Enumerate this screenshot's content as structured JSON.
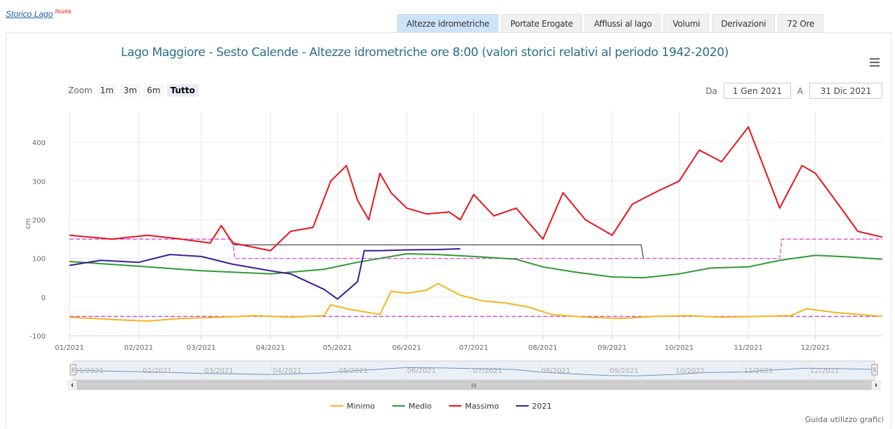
{
  "brand": {
    "label": "Storico Lago",
    "badge": "Novità"
  },
  "tabs": [
    {
      "label": "Altezze idrometriche",
      "active": true
    },
    {
      "label": "Portate Erogate",
      "active": false
    },
    {
      "label": "Afflussi al lago",
      "active": false
    },
    {
      "label": "Volumi",
      "active": false
    },
    {
      "label": "Derivazioni",
      "active": false
    },
    {
      "label": "72 Ore",
      "active": false
    }
  ],
  "zoom": {
    "label": "Zoom",
    "options": [
      {
        "label": "1m",
        "active": false
      },
      {
        "label": "3m",
        "active": false
      },
      {
        "label": "6m",
        "active": false
      },
      {
        "label": "Tutto",
        "active": true
      }
    ]
  },
  "range": {
    "from_label": "Da",
    "from_value": "1 Gen 2021",
    "to_label": "A",
    "to_value": "31 Dic 2021"
  },
  "guide_link": "Guida utilizzo grafici",
  "navigator": {
    "scroll_mark": "III"
  },
  "chart_data": {
    "type": "line",
    "title": "Lago Maggiore - Sesto Calende - Altezze idrometriche ore 8:00 (valori storici relativi al periodo 1942-2020)",
    "xlabel": "",
    "ylabel": "cm",
    "xlim": [
      "2021-01-01",
      "2021-12-31"
    ],
    "ylim": [
      -100,
      480
    ],
    "yticks": [
      -100,
      0,
      100,
      200,
      300,
      400
    ],
    "x_ticks": [
      "01/2021",
      "02/2021",
      "03/2021",
      "04/2021",
      "05/2021",
      "06/2021",
      "07/2021",
      "08/2021",
      "09/2021",
      "10/2021",
      "11/2021",
      "12/2021"
    ],
    "grid": "vertical",
    "legend_placement": "bottom-center",
    "colors": {
      "Minimo": "#f5b51c",
      "Medio": "#2f9a35",
      "Massimo": "#e8141c",
      "2021": "#3b1d96",
      "limits": "#e032d8",
      "threshold": "#222222"
    },
    "series": [
      {
        "name": "Minimo",
        "x": [
          "2021-01-01",
          "2021-01-20",
          "2021-02-05",
          "2021-02-20",
          "2021-03-10",
          "2021-03-25",
          "2021-04-10",
          "2021-04-25",
          "2021-04-28",
          "2021-05-05",
          "2021-05-15",
          "2021-05-20",
          "2021-05-25",
          "2021-06-01",
          "2021-06-10",
          "2021-06-15",
          "2021-06-25",
          "2021-07-05",
          "2021-07-15",
          "2021-07-25",
          "2021-08-05",
          "2021-08-20",
          "2021-09-05",
          "2021-09-20",
          "2021-10-05",
          "2021-10-20",
          "2021-11-05",
          "2021-11-20",
          "2021-11-27",
          "2021-12-10",
          "2021-12-31"
        ],
        "values": [
          -52,
          -58,
          -62,
          -55,
          -52,
          -48,
          -52,
          -48,
          -20,
          -30,
          -40,
          -45,
          15,
          10,
          18,
          35,
          5,
          -10,
          -15,
          -25,
          -45,
          -52,
          -55,
          -50,
          -48,
          -52,
          -50,
          -48,
          -30,
          -40,
          -50
        ]
      },
      {
        "name": "Medio",
        "x": [
          "2021-01-01",
          "2021-02-01",
          "2021-03-01",
          "2021-04-01",
          "2021-04-25",
          "2021-05-10",
          "2021-05-20",
          "2021-06-01",
          "2021-06-15",
          "2021-07-01",
          "2021-07-20",
          "2021-08-01",
          "2021-08-15",
          "2021-09-01",
          "2021-09-15",
          "2021-10-01",
          "2021-10-15",
          "2021-11-01",
          "2021-11-15",
          "2021-12-01",
          "2021-12-15",
          "2021-12-31"
        ],
        "values": [
          92,
          80,
          68,
          60,
          72,
          90,
          100,
          112,
          110,
          105,
          98,
          78,
          65,
          52,
          50,
          60,
          75,
          78,
          95,
          108,
          104,
          98
        ]
      },
      {
        "name": "Massimo",
        "x": [
          "2021-01-01",
          "2021-01-20",
          "2021-02-05",
          "2021-02-20",
          "2021-03-05",
          "2021-03-10",
          "2021-03-15",
          "2021-04-01",
          "2021-04-10",
          "2021-04-20",
          "2021-04-28",
          "2021-05-05",
          "2021-05-10",
          "2021-05-15",
          "2021-05-20",
          "2021-05-25",
          "2021-06-01",
          "2021-06-10",
          "2021-06-20",
          "2021-06-25",
          "2021-07-01",
          "2021-07-10",
          "2021-07-20",
          "2021-08-01",
          "2021-08-10",
          "2021-08-20",
          "2021-09-01",
          "2021-09-10",
          "2021-09-20",
          "2021-10-01",
          "2021-10-10",
          "2021-10-20",
          "2021-11-01",
          "2021-11-15",
          "2021-11-25",
          "2021-12-01",
          "2021-12-10",
          "2021-12-20",
          "2021-12-31"
        ],
        "values": [
          160,
          150,
          160,
          150,
          140,
          185,
          140,
          120,
          170,
          180,
          300,
          340,
          250,
          200,
          320,
          270,
          230,
          215,
          220,
          200,
          265,
          210,
          230,
          150,
          270,
          200,
          160,
          240,
          270,
          300,
          380,
          350,
          440,
          230,
          340,
          320,
          250,
          170,
          155
        ]
      },
      {
        "name": "2021",
        "x": [
          "2021-01-01",
          "2021-01-15",
          "2021-02-01",
          "2021-02-15",
          "2021-03-01",
          "2021-03-15",
          "2021-04-01",
          "2021-04-10",
          "2021-04-25",
          "2021-05-01",
          "2021-05-10",
          "2021-05-13",
          "2021-05-20",
          "2021-06-01",
          "2021-06-15",
          "2021-06-25"
        ],
        "values": [
          82,
          95,
          90,
          110,
          105,
          85,
          68,
          60,
          20,
          -5,
          40,
          120,
          120,
          122,
          123,
          125
        ]
      }
    ],
    "reference_lines": [
      {
        "name": "limite-superiore",
        "x": [
          "2021-01-01",
          "2021-03-15",
          "2021-03-16",
          "2021-11-15",
          "2021-11-16",
          "2021-12-31"
        ],
        "values": [
          150,
          150,
          100,
          100,
          150,
          150
        ]
      },
      {
        "name": "limite-inferiore",
        "x": [
          "2021-01-01",
          "2021-12-31"
        ],
        "values": [
          -50,
          -50
        ]
      },
      {
        "name": "soglia",
        "x": [
          "2021-03-15",
          "2021-03-16",
          "2021-09-14",
          "2021-09-15"
        ],
        "values": [
          135,
          135,
          135,
          100
        ]
      }
    ]
  }
}
